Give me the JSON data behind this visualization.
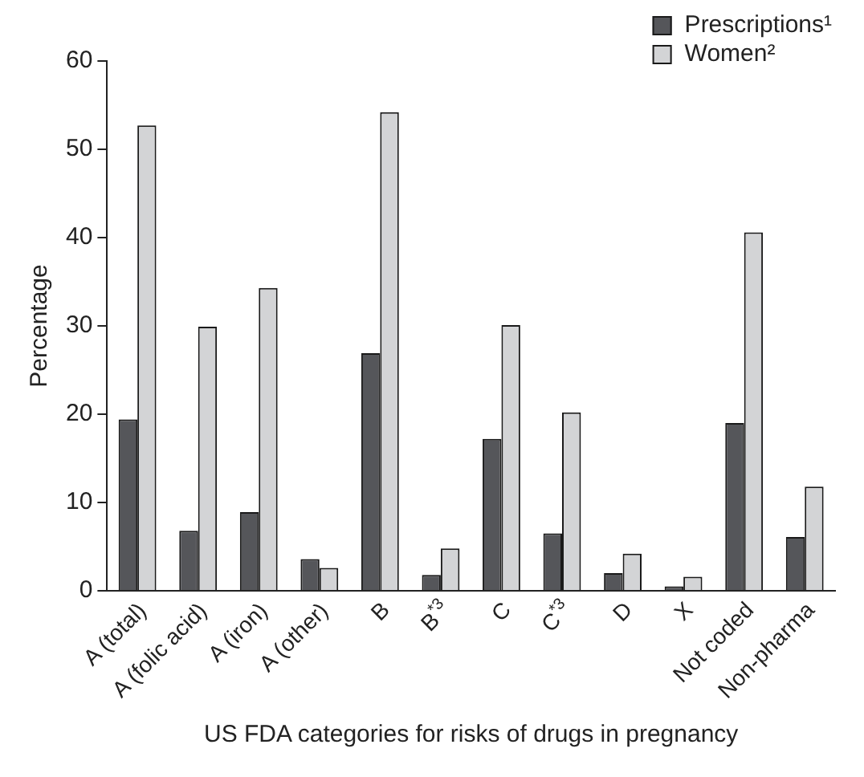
{
  "chart_data": {
    "type": "bar",
    "xlabel": "US FDA categories for risks of drugs in pregnancy",
    "ylabel": "Percentage",
    "categories": [
      "A (total)",
      "A (folic acid)",
      "A (iron)",
      "A (other)",
      "B",
      "B$^{*3}$",
      "C",
      "C$^{*3}$",
      "D",
      "X",
      "Not coded",
      "Non-pharma"
    ],
    "series": [
      {
        "name": "Prescriptions¹",
        "color": "#55565a",
        "values": [
          19.4,
          6.8,
          8.9,
          3.6,
          26.9,
          1.8,
          17.2,
          6.5,
          2.0,
          0.5,
          19.0,
          6.1
        ]
      },
      {
        "name": "Women²",
        "color": "#d3d4d6",
        "values": [
          52.7,
          29.9,
          34.3,
          2.6,
          54.2,
          4.8,
          30.1,
          20.2,
          4.2,
          1.6,
          40.6,
          11.8
        ]
      }
    ],
    "ylim": [
      0,
      60
    ],
    "yticks": [
      0,
      10,
      20,
      30,
      40,
      50,
      60
    ],
    "grid": false,
    "legend": "top right"
  }
}
